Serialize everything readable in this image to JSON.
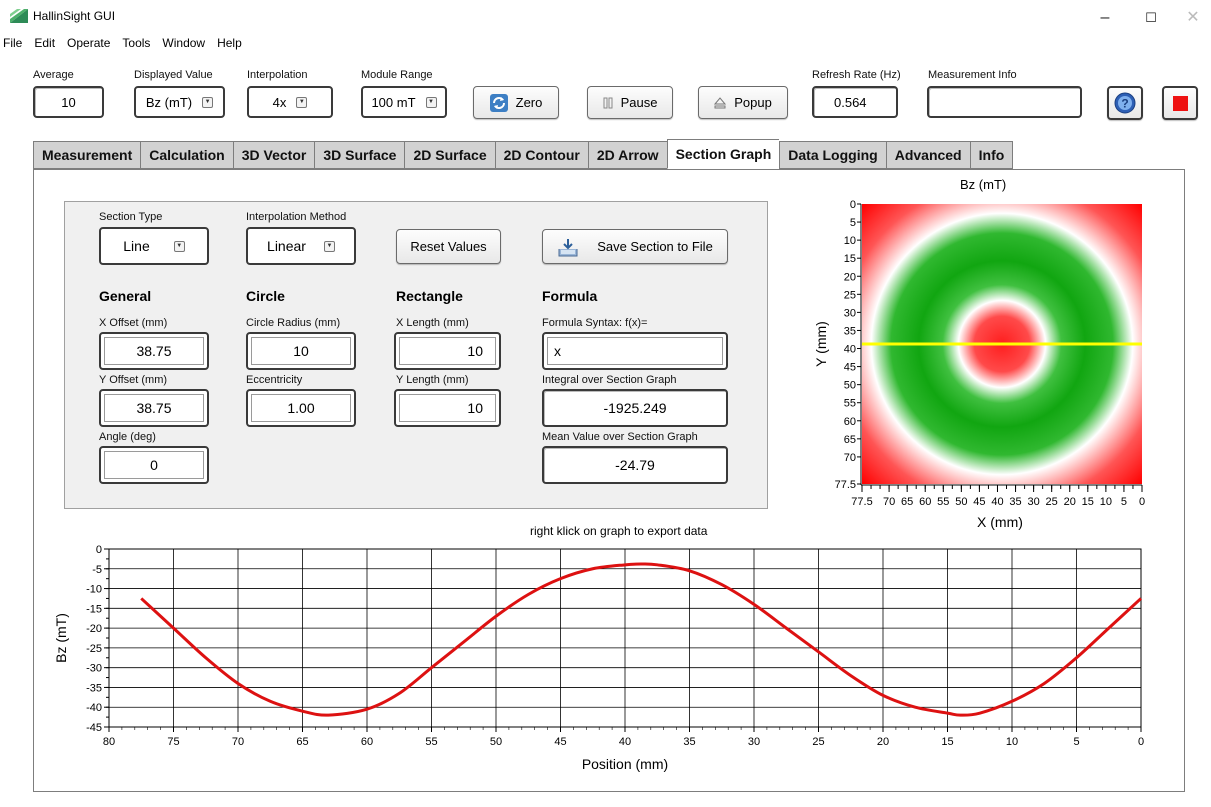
{
  "window": {
    "title": "HallinSight GUI",
    "minimize": "–",
    "maximize": "☐",
    "close": "✕"
  },
  "menu": [
    "File",
    "Edit",
    "Operate",
    "Tools",
    "Window",
    "Help"
  ],
  "toolbar": {
    "average": {
      "label": "Average",
      "value": "10"
    },
    "displayed_value": {
      "label": "Displayed Value",
      "value": "Bz (mT)"
    },
    "interpolation": {
      "label": "Interpolation",
      "value": "4x"
    },
    "module_range": {
      "label": "Module Range",
      "value": "100 mT"
    },
    "zero_label": "Zero",
    "pause_label": "Pause",
    "popup_label": "Popup",
    "refresh_rate": {
      "label": "Refresh Rate (Hz)",
      "value": "0.564"
    },
    "measurement_info": {
      "label": "Measurement Info",
      "value": ""
    }
  },
  "tabs": [
    {
      "label": "Measurement"
    },
    {
      "label": "Calculation"
    },
    {
      "label": "3D Vector"
    },
    {
      "label": "3D Surface"
    },
    {
      "label": "2D Surface"
    },
    {
      "label": "2D Contour"
    },
    {
      "label": "2D Arrow"
    },
    {
      "label": "Section Graph",
      "active": true
    },
    {
      "label": "Data Logging"
    },
    {
      "label": "Advanced"
    },
    {
      "label": "Info"
    }
  ],
  "section": {
    "section_type": {
      "label": "Section Type",
      "value": "Line"
    },
    "interpolation_method": {
      "label": "Interpolation Method",
      "value": "Linear"
    },
    "reset_label": "Reset Values",
    "save_label": "Save Section to File",
    "general": {
      "heading": "General",
      "x_offset": {
        "label": "X Offset (mm)",
        "value": "38.75"
      },
      "y_offset": {
        "label": "Y Offset (mm)",
        "value": "38.75"
      },
      "angle": {
        "label": "Angle (deg)",
        "value": "0"
      }
    },
    "circle": {
      "heading": "Circle",
      "radius": {
        "label": "Circle Radius (mm)",
        "value": "10"
      },
      "eccentricity": {
        "label": "Eccentricity",
        "value": "1.00"
      }
    },
    "rectangle": {
      "heading": "Rectangle",
      "x_length": {
        "label": "X Length (mm)",
        "value": "10"
      },
      "y_length": {
        "label": "Y Length (mm)",
        "value": "10"
      }
    },
    "formula": {
      "heading": "Formula",
      "syntax": {
        "label": "Formula Syntax: f(x)=",
        "value": "x"
      },
      "integral": {
        "label": "Integral over Section Graph",
        "value": "-1925.249"
      },
      "mean": {
        "label": "Mean Value over Section Graph",
        "value": "-24.79"
      }
    }
  },
  "graph_note": "right klick on graph to export data",
  "chart_data": [
    {
      "type": "heatmap",
      "title": "Bz (mT)",
      "xlabel": "X (mm)",
      "ylabel": "Y (mm)",
      "x_ticks": [
        "77.5",
        "70",
        "65",
        "60",
        "55",
        "50",
        "45",
        "40",
        "35",
        "30",
        "25",
        "20",
        "15",
        "10",
        "5",
        "0"
      ],
      "y_ticks": [
        "0",
        "5",
        "10",
        "15",
        "20",
        "25",
        "30",
        "35",
        "40",
        "45",
        "50",
        "55",
        "60",
        "65",
        "70",
        "77.5"
      ],
      "xlim": [
        77.5,
        0
      ],
      "ylim": [
        0,
        77.5
      ],
      "center": [
        38.75,
        38.75
      ],
      "section_line_y": 38.75,
      "colors": {
        "negative": "#ff0000",
        "neutral": "#ffffff",
        "positive": "#00a000",
        "section_line": "#ffff00"
      }
    },
    {
      "type": "line",
      "xlabel": "Position (mm)",
      "ylabel": "Bz (mT)",
      "xlim": [
        80,
        0
      ],
      "ylim": [
        -45,
        0
      ],
      "x_ticks": [
        80,
        75,
        70,
        65,
        60,
        55,
        50,
        45,
        40,
        35,
        30,
        25,
        20,
        15,
        10,
        5,
        0
      ],
      "y_ticks": [
        0,
        -5,
        -10,
        -15,
        -20,
        -25,
        -30,
        -35,
        -40,
        -45
      ],
      "grid": true,
      "line_color": "#dd1111",
      "x": [
        77.5,
        75,
        72.5,
        70,
        67.5,
        65,
        63,
        60,
        57.5,
        55,
        52.5,
        50,
        47.5,
        45,
        42.5,
        40,
        38.75,
        37.5,
        35,
        32.5,
        30,
        27.5,
        25,
        22.5,
        20,
        17.5,
        15,
        14,
        12.5,
        10,
        7.5,
        5,
        2.5,
        0
      ],
      "y": [
        -12.5,
        -20,
        -27.5,
        -34,
        -38.5,
        -41,
        -42,
        -40.5,
        -36.5,
        -30,
        -23.5,
        -17,
        -11.5,
        -7.5,
        -5,
        -4,
        -3.8,
        -4,
        -5.5,
        -9,
        -14,
        -20,
        -26,
        -32,
        -37,
        -40,
        -41.5,
        -42,
        -41.5,
        -38.5,
        -34,
        -27.5,
        -20,
        -12.5
      ]
    }
  ]
}
